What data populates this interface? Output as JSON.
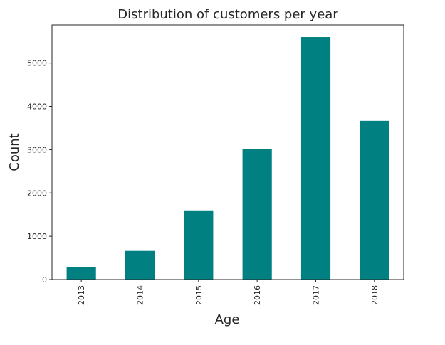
{
  "chart_data": {
    "type": "bar",
    "title": "Distribution of customers per year",
    "xlabel": "Age",
    "ylabel": "Count",
    "categories": [
      "2013",
      "2014",
      "2015",
      "2016",
      "2017",
      "2018"
    ],
    "values": [
      286,
      662,
      1597,
      3022,
      5601,
      3666
    ],
    "ylim": [
      0,
      5881
    ],
    "yticks": [
      0,
      1000,
      2000,
      3000,
      4000,
      5000
    ],
    "bar_color": "#008080",
    "grid": false,
    "legend": "none"
  }
}
